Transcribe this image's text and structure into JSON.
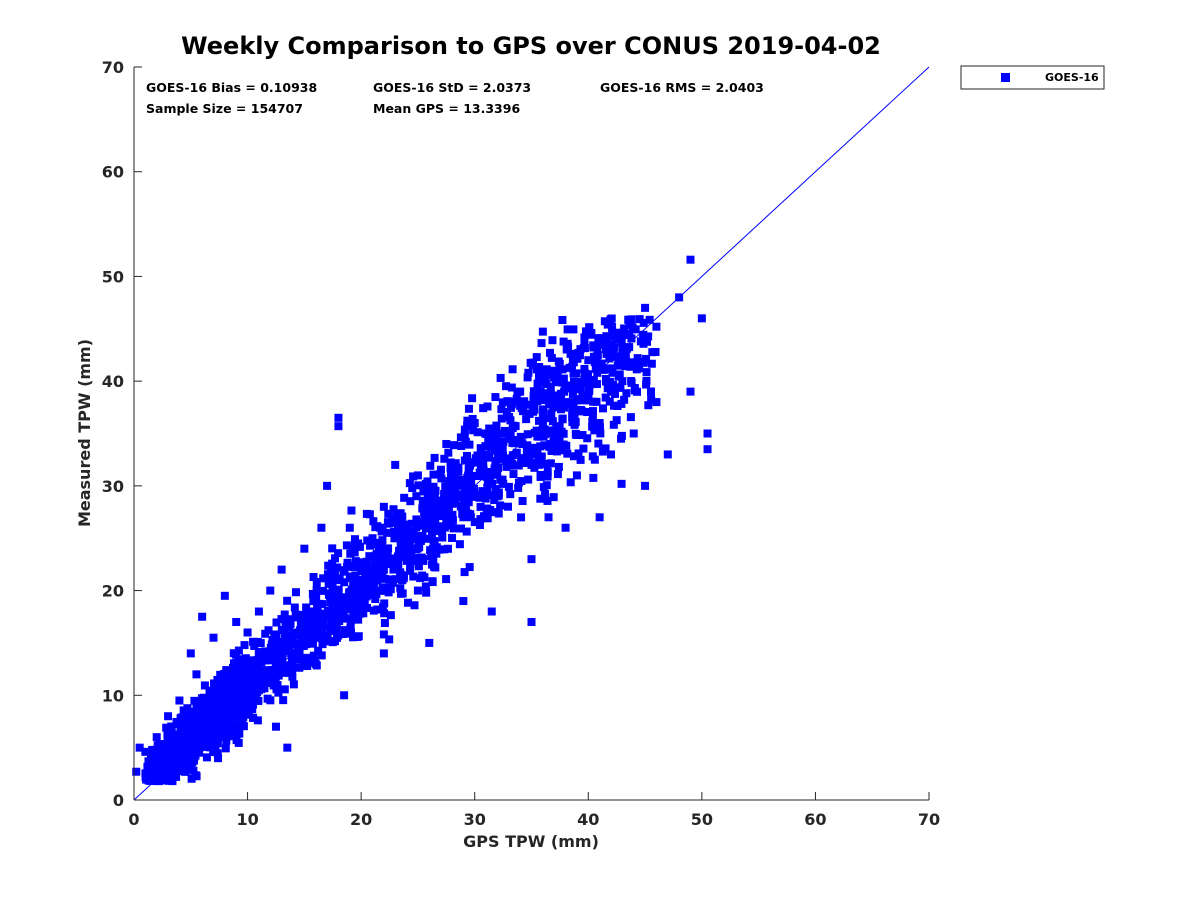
{
  "chart_data": {
    "type": "scatter",
    "title": "Weekly Comparison to GPS over CONUS 2019-04-02",
    "xlabel": "GPS TPW (mm)",
    "ylabel": "Measured TPW (mm)",
    "xlim": [
      0,
      70
    ],
    "ylim": [
      0,
      70
    ],
    "xticks": [
      0,
      10,
      20,
      30,
      40,
      50,
      60,
      70
    ],
    "yticks": [
      0,
      10,
      20,
      30,
      40,
      50,
      60,
      70
    ],
    "grid": false,
    "legend": {
      "placement": "outside-top-right",
      "entries": [
        "GOES-16"
      ]
    },
    "stats": {
      "bias": "GOES-16 Bias = 0.10938",
      "std": "GOES-16 StD = 2.0373",
      "rms": "GOES-16 RMS = 2.0403",
      "sample_size": "Sample Size = 154707",
      "mean_gps": "Mean GPS = 13.3396"
    },
    "colors": {
      "series": "#0000ff",
      "reference_line": "#0000ff",
      "axis": "#262626"
    },
    "reference_line": {
      "label": "1:1",
      "x": [
        0,
        70
      ],
      "y": [
        0,
        70
      ]
    },
    "series": [
      {
        "name": "GOES-16",
        "marker": "square",
        "points": [
          [
            0.2,
            2.7
          ],
          [
            0.5,
            5.0
          ],
          [
            1.0,
            4.6
          ],
          [
            1.5,
            2.3
          ],
          [
            2.0,
            6.0
          ],
          [
            2.5,
            3.0
          ],
          [
            3.0,
            8.0
          ],
          [
            3.0,
            2.0
          ],
          [
            4.0,
            9.5
          ],
          [
            4.5,
            3.5
          ],
          [
            5.0,
            14.0
          ],
          [
            5.5,
            12.0
          ],
          [
            6.0,
            17.5
          ],
          [
            6.0,
            5.5
          ],
          [
            7.0,
            15.5
          ],
          [
            8.0,
            19.5
          ],
          [
            8.0,
            12.0
          ],
          [
            8.0,
            6.0
          ],
          [
            9.0,
            17.0
          ],
          [
            10.0,
            9.0
          ],
          [
            10.0,
            16.0
          ],
          [
            11.0,
            18.0
          ],
          [
            12.0,
            20.0
          ],
          [
            13.0,
            22.0
          ],
          [
            12.5,
            7.0
          ],
          [
            13.5,
            5.0
          ],
          [
            14.0,
            15.0
          ],
          [
            15.0,
            24.0
          ],
          [
            16.0,
            13.0
          ],
          [
            16.5,
            26.0
          ],
          [
            17.0,
            30.0
          ],
          [
            18.0,
            21.0
          ],
          [
            18.0,
            36.5
          ],
          [
            18.0,
            35.7
          ],
          [
            18.5,
            10.0
          ],
          [
            19.0,
            26.0
          ],
          [
            20.0,
            22.0
          ],
          [
            21.0,
            25.0
          ],
          [
            22.0,
            28.0
          ],
          [
            23.0,
            23.0
          ],
          [
            23.0,
            32.0
          ],
          [
            22.0,
            14.0
          ],
          [
            24.0,
            26.0
          ],
          [
            25.0,
            31.0
          ],
          [
            25.0,
            20.0
          ],
          [
            26.0,
            29.0
          ],
          [
            26.0,
            15.0
          ],
          [
            27.0,
            26.0
          ],
          [
            27.5,
            34.0
          ],
          [
            28.0,
            31.0
          ],
          [
            29.0,
            27.0
          ],
          [
            29.0,
            19.0
          ],
          [
            30.0,
            36.0
          ],
          [
            31.0,
            33.0
          ],
          [
            31.5,
            18.0
          ],
          [
            32.0,
            29.0
          ],
          [
            33.0,
            35.0
          ],
          [
            34.0,
            39.0
          ],
          [
            35.0,
            17.0
          ],
          [
            35.0,
            23.0
          ],
          [
            35.0,
            32.0
          ],
          [
            36.0,
            37.0
          ],
          [
            36.5,
            27.0
          ],
          [
            37.0,
            34.0
          ],
          [
            38.0,
            38.0
          ],
          [
            38.0,
            26.0
          ],
          [
            39.0,
            31.0
          ],
          [
            40.0,
            42.0
          ],
          [
            41.0,
            27.0
          ],
          [
            41.0,
            36.0
          ],
          [
            42.0,
            39.0
          ],
          [
            42.0,
            33.0
          ],
          [
            43.0,
            40.0
          ],
          [
            44.0,
            35.0
          ],
          [
            45.0,
            47.0
          ],
          [
            45.0,
            30.0
          ],
          [
            46.0,
            38.0
          ],
          [
            47.0,
            33.0
          ],
          [
            48.0,
            48.0
          ],
          [
            49.0,
            51.6
          ],
          [
            49.0,
            39.0
          ],
          [
            50.0,
            46.0
          ],
          [
            50.5,
            35.0
          ],
          [
            50.5,
            33.5
          ]
        ]
      }
    ]
  }
}
